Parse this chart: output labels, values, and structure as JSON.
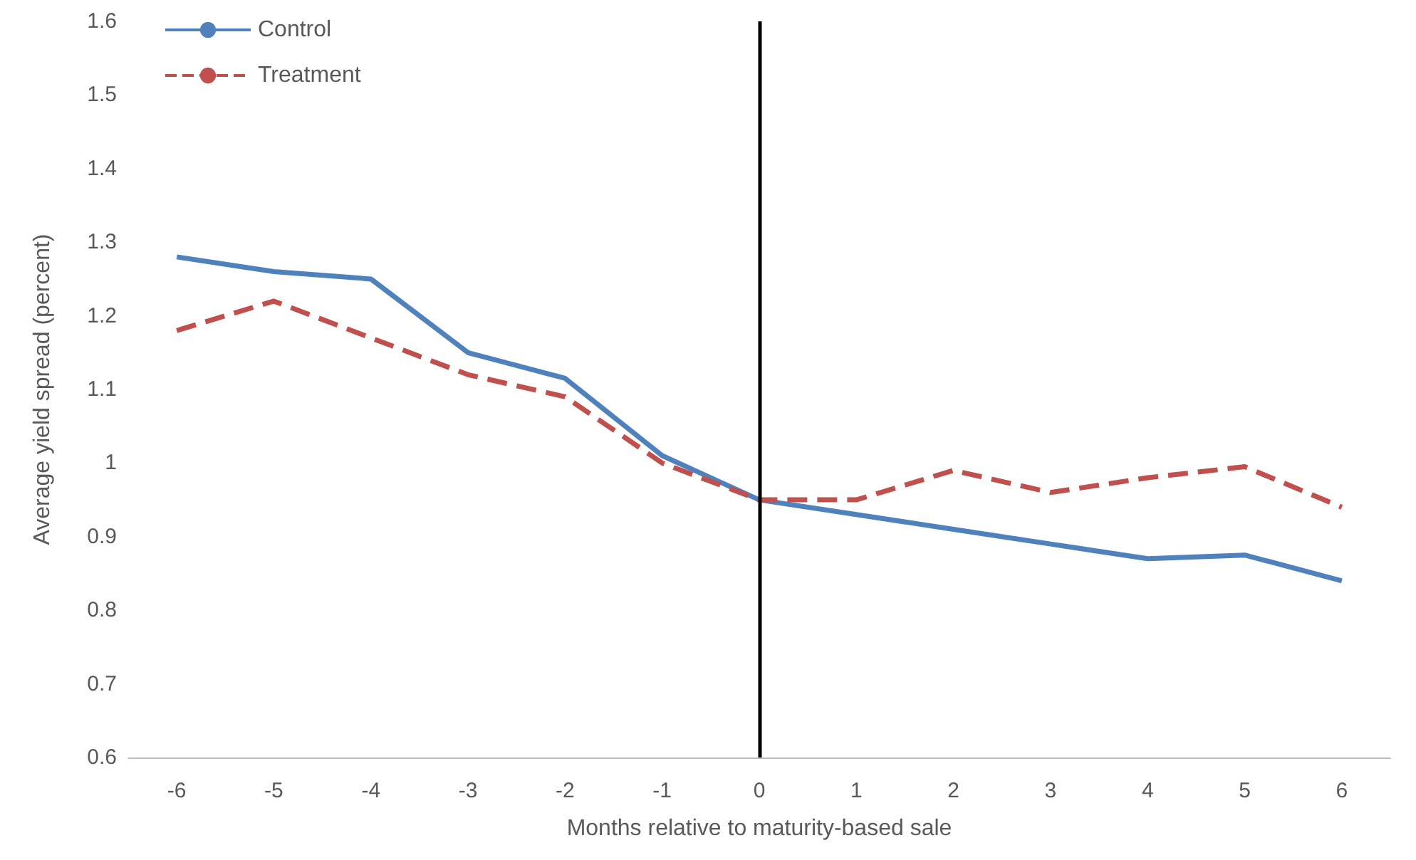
{
  "chart_data": {
    "type": "line",
    "xlabel": "Months relative to maturity-based sale",
    "ylabel": "Average yield spread (percent)",
    "categories": [
      "-6",
      "-5",
      "-4",
      "-3",
      "-2",
      "-1",
      "0",
      "1",
      "2",
      "3",
      "4",
      "5",
      "6"
    ],
    "series": [
      {
        "name": "Control",
        "color": "#4f81bd",
        "line_style": "solid",
        "values": [
          1.28,
          1.26,
          1.25,
          1.15,
          1.115,
          1.01,
          0.95,
          0.93,
          0.91,
          0.89,
          0.87,
          0.875,
          0.84
        ]
      },
      {
        "name": "Treatment",
        "color": "#c0504d",
        "line_style": "dashed",
        "values": [
          1.18,
          1.22,
          1.17,
          1.12,
          1.09,
          1.0,
          0.95,
          0.95,
          0.99,
          0.96,
          0.98,
          0.995,
          0.94
        ]
      }
    ],
    "ylim": [
      0.6,
      1.6
    ],
    "yticks": [
      0.6,
      0.7,
      0.8,
      0.9,
      1,
      1.1,
      1.2,
      1.3,
      1.4,
      1.5,
      1.6
    ],
    "ref_lines": [
      {
        "axis": "x",
        "value": "0",
        "color": "#000000",
        "line_style": "solid"
      }
    ],
    "grid": false,
    "legend": "top left",
    "marker": "none"
  }
}
